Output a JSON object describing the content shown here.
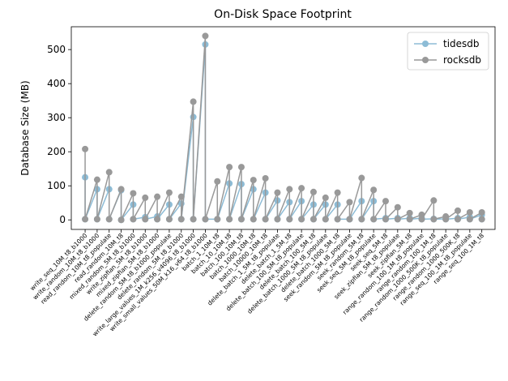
{
  "chart_data": {
    "type": "line",
    "title": "On-Disk Space Footprint",
    "ylabel": "Database Size (MB)",
    "x": [
      0,
      0,
      1,
      1,
      2,
      2,
      3,
      3,
      4,
      4,
      5,
      5,
      6,
      6,
      7,
      7,
      8,
      8,
      9,
      9,
      10,
      10,
      11,
      11,
      12,
      12,
      13,
      13,
      14,
      14,
      15,
      15,
      16,
      16,
      17,
      17,
      18,
      18,
      19,
      19,
      20,
      20,
      21,
      21,
      22,
      22,
      23,
      23,
      24,
      24,
      25,
      25,
      26,
      26,
      27,
      27,
      28,
      28,
      29,
      29,
      30,
      30,
      31,
      31,
      32,
      32,
      33,
      33
    ],
    "series": [
      {
        "name": "tidesdb",
        "color": "#8dbcd6",
        "values": [
          125,
          2,
          90,
          2,
          90,
          2,
          87,
          0,
          45,
          2,
          8,
          2,
          10,
          2,
          45,
          2,
          48,
          2,
          302,
          2,
          515,
          2,
          2,
          2,
          107,
          2,
          105,
          2,
          90,
          2,
          80,
          2,
          57,
          2,
          52,
          2,
          55,
          2,
          45,
          2,
          45,
          2,
          45,
          2,
          2,
          2,
          55,
          2,
          55,
          2,
          5,
          2,
          5,
          2,
          5,
          2,
          5,
          2,
          3,
          2,
          3,
          2,
          5,
          2,
          8,
          2,
          15,
          2
        ]
      },
      {
        "name": "rocksdb",
        "color": "#999999",
        "values": [
          208,
          2,
          118,
          2,
          140,
          2,
          90,
          0,
          78,
          2,
          65,
          2,
          68,
          2,
          80,
          2,
          68,
          2,
          347,
          2,
          540,
          2,
          113,
          2,
          155,
          2,
          155,
          2,
          117,
          2,
          122,
          2,
          80,
          2,
          90,
          2,
          93,
          2,
          82,
          2,
          65,
          2,
          80,
          2,
          52,
          2,
          123,
          2,
          88,
          2,
          55,
          2,
          37,
          2,
          20,
          2,
          15,
          2,
          57,
          2,
          10,
          2,
          27,
          2,
          22,
          2,
          22,
          2
        ]
      }
    ],
    "xlim": [
      -1.15,
      34.1
    ],
    "ylim": [
      -28,
      567
    ],
    "yticks": [
      0,
      100,
      200,
      300,
      400,
      500
    ],
    "xticks": [
      {
        "value": 0,
        "label": "write_seq_10M_t8_b1000"
      },
      {
        "value": 1,
        "label": "write_random_10M_t8_b1000"
      },
      {
        "value": 2,
        "label": "read_random_10M_t8_populate"
      },
      {
        "value": 3,
        "label": "read_random_10M_t8"
      },
      {
        "value": 4,
        "label": "mixed_random_5M_t8_b1000"
      },
      {
        "value": 5,
        "label": "write_zipfian_5M_t8_b1000"
      },
      {
        "value": 6,
        "label": "mixed_zipfian_5M_t8_b1000"
      },
      {
        "value": 7,
        "label": "delete_random_5M_t8_b1000_populate"
      },
      {
        "value": 8,
        "label": "delete_random_5M_t8_b1000"
      },
      {
        "value": 9,
        "label": "write_large_values_1M_k256_v4096_t8_b1000"
      },
      {
        "value": 10,
        "label": "write_small_values_50M_k16_v64_t8_b1000"
      },
      {
        "value": 11,
        "label": "batch_1_10M_t8"
      },
      {
        "value": 12,
        "label": "batch_10_10M_t8"
      },
      {
        "value": 13,
        "label": "batch_100_10M_t8"
      },
      {
        "value": 14,
        "label": "batch_1000_10M_t8"
      },
      {
        "value": 15,
        "label": "batch_10000_10M_t8"
      },
      {
        "value": 16,
        "label": "delete_batch_1_5M_t8_populate"
      },
      {
        "value": 17,
        "label": "delete_batch_1_5M_t8"
      },
      {
        "value": 18,
        "label": "delete_batch_100_5M_t8_populate"
      },
      {
        "value": 19,
        "label": "delete_batch_100_5M_t8"
      },
      {
        "value": 20,
        "label": "delete_batch_1000_5M_t8_populate"
      },
      {
        "value": 21,
        "label": "delete_batch_1000_5M_t8"
      },
      {
        "value": 22,
        "label": "seek_random_5M_t8_populate"
      },
      {
        "value": 23,
        "label": "seek_random_5M_t8"
      },
      {
        "value": 24,
        "label": "seek_seq_5M_t8_populate"
      },
      {
        "value": 25,
        "label": "seek_seq_5M_t8"
      },
      {
        "value": 26,
        "label": "seek_zipfian_5M_t8_populate"
      },
      {
        "value": 27,
        "label": "seek_zipfian_5M_t8"
      },
      {
        "value": 28,
        "label": "range_random_100_1M_t8_populate"
      },
      {
        "value": 29,
        "label": "range_random_100_1M_t8"
      },
      {
        "value": 30,
        "label": "range_random_1000_500K_t8_populate"
      },
      {
        "value": 31,
        "label": "range_random_1000_500K_t8"
      },
      {
        "value": 32,
        "label": "range_seq_100_1M_t8_populate"
      },
      {
        "value": 33,
        "label": "range_seq_100_1M_t8"
      }
    ],
    "legend": "upper right"
  }
}
